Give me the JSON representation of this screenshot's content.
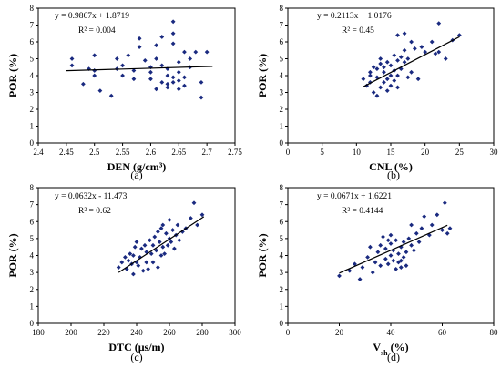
{
  "chart_data": [
    {
      "type": "scatter",
      "panel_label": "(a)",
      "xlabel": "DEN (g/cm³)",
      "ylabel": "POR (%)",
      "xlim": [
        2.4,
        2.75
      ],
      "ylim": [
        0,
        8
      ],
      "x_ticks": [
        "2.4",
        "2.45",
        "2.5",
        "2.55",
        "2.6",
        "2.65",
        "2.7",
        "2.75"
      ],
      "y_ticks": [
        "0",
        "1",
        "2",
        "3",
        "4",
        "5",
        "6",
        "7",
        "8"
      ],
      "equation": "y = 0.9867x + 1.8719",
      "r2": "R² = 0.004",
      "trend": {
        "slope": 0.9867,
        "intercept": 1.8719,
        "x_range": [
          2.45,
          2.71
        ]
      },
      "points": [
        [
          2.46,
          5.0
        ],
        [
          2.46,
          4.6
        ],
        [
          2.48,
          3.5
        ],
        [
          2.49,
          4.4
        ],
        [
          2.5,
          4.3
        ],
        [
          2.5,
          4.0
        ],
        [
          2.5,
          5.2
        ],
        [
          2.51,
          3.1
        ],
        [
          2.53,
          2.8
        ],
        [
          2.54,
          4.4
        ],
        [
          2.54,
          5.0
        ],
        [
          2.55,
          4.0
        ],
        [
          2.55,
          4.6
        ],
        [
          2.56,
          5.2
        ],
        [
          2.57,
          4.3
        ],
        [
          2.58,
          5.7
        ],
        [
          2.58,
          6.2
        ],
        [
          2.59,
          4.9
        ],
        [
          2.6,
          4.2
        ],
        [
          2.6,
          4.5
        ],
        [
          2.6,
          3.8
        ],
        [
          2.61,
          5.0
        ],
        [
          2.61,
          5.8
        ],
        [
          2.62,
          4.6
        ],
        [
          2.62,
          6.3
        ],
        [
          2.63,
          3.3
        ],
        [
          2.63,
          3.5
        ],
        [
          2.63,
          4.0
        ],
        [
          2.63,
          4.4
        ],
        [
          2.64,
          3.6
        ],
        [
          2.64,
          3.9
        ],
        [
          2.64,
          5.9
        ],
        [
          2.64,
          6.5
        ],
        [
          2.64,
          7.2
        ],
        [
          2.65,
          3.2
        ],
        [
          2.65,
          3.7
        ],
        [
          2.65,
          4.2
        ],
        [
          2.65,
          4.8
        ],
        [
          2.66,
          3.4
        ],
        [
          2.66,
          3.9
        ],
        [
          2.66,
          5.4
        ],
        [
          2.67,
          4.5
        ],
        [
          2.67,
          5.0
        ],
        [
          2.68,
          5.4
        ],
        [
          2.69,
          3.6
        ],
        [
          2.69,
          2.7
        ],
        [
          2.7,
          5.4
        ],
        [
          2.61,
          3.2
        ],
        [
          2.62,
          3.6
        ],
        [
          2.57,
          3.8
        ]
      ]
    },
    {
      "type": "scatter",
      "panel_label": "(b)",
      "xlabel": "CNL (%)",
      "ylabel": "POR (%)",
      "xlim": [
        0,
        30
      ],
      "ylim": [
        0,
        8
      ],
      "x_ticks": [
        "0",
        "5",
        "10",
        "15",
        "20",
        "25",
        "30"
      ],
      "y_ticks": [
        "0",
        "1",
        "2",
        "3",
        "4",
        "5",
        "6",
        "7",
        "8"
      ],
      "equation": "y = 0.2113x + 1.0176",
      "r2": "R² = 0.45",
      "trend": {
        "slope": 0.2113,
        "intercept": 1.0176,
        "x_range": [
          11,
          25
        ]
      },
      "points": [
        [
          11,
          3.8
        ],
        [
          11.5,
          3.4
        ],
        [
          12,
          3.6
        ],
        [
          12,
          4.0
        ],
        [
          12.5,
          3.0
        ],
        [
          12.5,
          4.5
        ],
        [
          13,
          2.8
        ],
        [
          13,
          3.9
        ],
        [
          13,
          4.4
        ],
        [
          13.5,
          3.3
        ],
        [
          13.5,
          4.7
        ],
        [
          13.5,
          5.0
        ],
        [
          14,
          3.6
        ],
        [
          14,
          4.2
        ],
        [
          14,
          4.5
        ],
        [
          14.5,
          3.1
        ],
        [
          14.5,
          3.8
        ],
        [
          14.5,
          4.8
        ],
        [
          15,
          3.4
        ],
        [
          15,
          4.0
        ],
        [
          15,
          4.6
        ],
        [
          15.5,
          3.7
        ],
        [
          15.5,
          4.3
        ],
        [
          15.5,
          5.2
        ],
        [
          16,
          4.0
        ],
        [
          16,
          4.9
        ],
        [
          16,
          6.4
        ],
        [
          16.5,
          4.4
        ],
        [
          16.5,
          5.1
        ],
        [
          17,
          4.8
        ],
        [
          17,
          5.5
        ],
        [
          17,
          6.5
        ],
        [
          17.5,
          3.9
        ],
        [
          17.5,
          5.0
        ],
        [
          18,
          4.2
        ],
        [
          18,
          6.0
        ],
        [
          18.5,
          5.6
        ],
        [
          19,
          3.8
        ],
        [
          19.5,
          5.7
        ],
        [
          20,
          5.4
        ],
        [
          21,
          6.0
        ],
        [
          21.5,
          5.3
        ],
        [
          22,
          5.4
        ],
        [
          22,
          7.1
        ],
        [
          23,
          5.0
        ],
        [
          24,
          6.1
        ],
        [
          25,
          6.4
        ],
        [
          12,
          4.2
        ],
        [
          16,
          3.3
        ]
      ]
    },
    {
      "type": "scatter",
      "panel_label": "(c)",
      "xlabel": "DTC (μs/m)",
      "ylabel": "POR (%)",
      "xlim": [
        180,
        300
      ],
      "ylim": [
        0,
        8
      ],
      "x_ticks": [
        "180",
        "200",
        "220",
        "240",
        "260",
        "280",
        "300"
      ],
      "y_ticks": [
        "0",
        "1",
        "2",
        "3",
        "4",
        "5",
        "6",
        "7",
        "8"
      ],
      "equation": "y = 0.0632x - 11.473",
      "r2": "R² = 0.62",
      "trend": {
        "slope": 0.0632,
        "intercept": -11.473,
        "x_range": [
          229,
          281
        ]
      },
      "points": [
        [
          229,
          3.3
        ],
        [
          231,
          3.6
        ],
        [
          233,
          3.9
        ],
        [
          234,
          3.2
        ],
        [
          235,
          3.7
        ],
        [
          236,
          4.1
        ],
        [
          237,
          3.5
        ],
        [
          238,
          2.9
        ],
        [
          238,
          4.0
        ],
        [
          239,
          4.5
        ],
        [
          240,
          3.6
        ],
        [
          240,
          4.8
        ],
        [
          241,
          3.4
        ],
        [
          242,
          3.9
        ],
        [
          243,
          4.4
        ],
        [
          244,
          3.1
        ],
        [
          245,
          4.6
        ],
        [
          246,
          3.6
        ],
        [
          246,
          4.2
        ],
        [
          247,
          3.2
        ],
        [
          248,
          4.9
        ],
        [
          249,
          4.1
        ],
        [
          250,
          3.6
        ],
        [
          250,
          4.6
        ],
        [
          251,
          5.1
        ],
        [
          252,
          4.3
        ],
        [
          253,
          3.3
        ],
        [
          253,
          5.4
        ],
        [
          254,
          4.8
        ],
        [
          255,
          4.0
        ],
        [
          255,
          5.6
        ],
        [
          256,
          4.5
        ],
        [
          256,
          5.8
        ],
        [
          257,
          4.1
        ],
        [
          258,
          5.3
        ],
        [
          259,
          4.6
        ],
        [
          260,
          5.0
        ],
        [
          260,
          6.1
        ],
        [
          261,
          4.8
        ],
        [
          262,
          5.5
        ],
        [
          263,
          4.4
        ],
        [
          264,
          5.2
        ],
        [
          265,
          5.8
        ],
        [
          266,
          4.9
        ],
        [
          268,
          5.4
        ],
        [
          270,
          5.6
        ],
        [
          273,
          6.2
        ],
        [
          275,
          7.1
        ],
        [
          277,
          5.8
        ],
        [
          280,
          6.4
        ]
      ]
    },
    {
      "type": "scatter",
      "panel_label": "(d)",
      "xlabel": "V",
      "xlabel_sub": "sh",
      "xlabel_unit": " (%)",
      "ylabel": "POR (%)",
      "xlim": [
        0,
        80
      ],
      "ylim": [
        0,
        8
      ],
      "x_ticks": [
        "0",
        "20",
        "40",
        "60",
        "80"
      ],
      "y_ticks": [
        "0",
        "1",
        "2",
        "3",
        "4",
        "5",
        "6",
        "7",
        "8"
      ],
      "equation": "y = 0.0671x + 1.6221",
      "r2": "R² = 0.4144",
      "trend": {
        "slope": 0.0671,
        "intercept": 1.6221,
        "x_range": [
          20,
          62
        ]
      },
      "points": [
        [
          20,
          2.8
        ],
        [
          24,
          3.1
        ],
        [
          26,
          3.5
        ],
        [
          28,
          2.6
        ],
        [
          29,
          3.3
        ],
        [
          31,
          3.9
        ],
        [
          32,
          4.5
        ],
        [
          33,
          3.0
        ],
        [
          34,
          3.6
        ],
        [
          35,
          4.2
        ],
        [
          36,
          3.4
        ],
        [
          36,
          4.6
        ],
        [
          37,
          5.1
        ],
        [
          38,
          3.8
        ],
        [
          38,
          4.4
        ],
        [
          39,
          3.5
        ],
        [
          40,
          4.0
        ],
        [
          40,
          4.7
        ],
        [
          40,
          5.2
        ],
        [
          41,
          3.7
        ],
        [
          41,
          4.3
        ],
        [
          42,
          3.2
        ],
        [
          42,
          4.9
        ],
        [
          43,
          3.6
        ],
        [
          43,
          4.1
        ],
        [
          44,
          4.5
        ],
        [
          44,
          3.3
        ],
        [
          45,
          3.9
        ],
        [
          45,
          4.8
        ],
        [
          46,
          4.2
        ],
        [
          46,
          3.4
        ],
        [
          47,
          5.0
        ],
        [
          48,
          4.6
        ],
        [
          48,
          5.8
        ],
        [
          49,
          4.3
        ],
        [
          50,
          5.3
        ],
        [
          51,
          4.8
        ],
        [
          52,
          5.6
        ],
        [
          53,
          6.3
        ],
        [
          55,
          5.2
        ],
        [
          56,
          5.8
        ],
        [
          58,
          6.4
        ],
        [
          60,
          5.5
        ],
        [
          61,
          7.1
        ],
        [
          62,
          5.3
        ],
        [
          63,
          5.6
        ],
        [
          44,
          3.7
        ],
        [
          39,
          4.9
        ]
      ]
    }
  ]
}
